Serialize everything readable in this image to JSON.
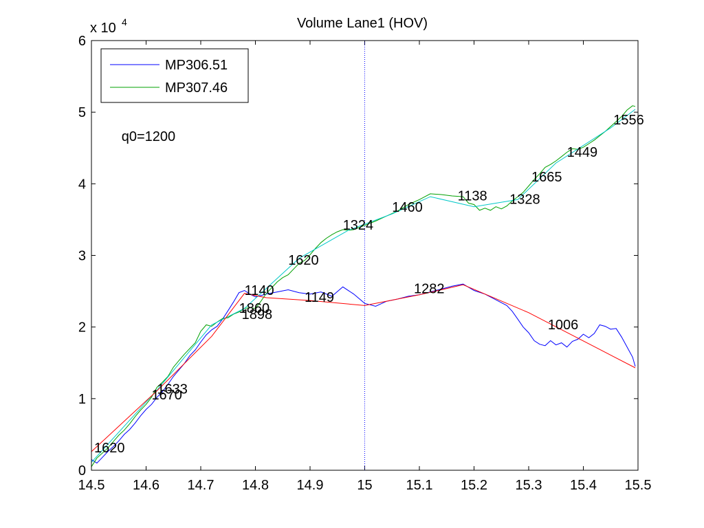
{
  "chart_data": {
    "type": "line",
    "title": "Volume Lane1 (HOV)",
    "xlabel": "",
    "ylabel": "",
    "y_multiplier_label": "x 10",
    "y_multiplier_exponent": "4",
    "xlim": [
      14.5,
      15.5
    ],
    "ylim": [
      0,
      60000
    ],
    "xticks": [
      14.5,
      14.6,
      14.7,
      14.8,
      14.9,
      15,
      15.1,
      15.2,
      15.3,
      15.4,
      15.5
    ],
    "xtick_labels": [
      "14.5",
      "14.6",
      "14.7",
      "14.8",
      "14.9",
      "15",
      "15.1",
      "15.2",
      "15.3",
      "15.4",
      "15.5"
    ],
    "yticks": [
      0,
      10000,
      20000,
      30000,
      40000,
      50000,
      60000
    ],
    "ytick_labels": [
      "0",
      "1",
      "2",
      "3",
      "4",
      "5",
      "6"
    ],
    "grid": false,
    "legend_position": "top-left",
    "vertical_marker": {
      "x": 15,
      "color": "#0000ff"
    },
    "note": "q0=1200",
    "note_pos": [
      14.555,
      46000
    ],
    "series": [
      {
        "name": "MP306.51",
        "color": "#0000ff",
        "points": [
          [
            14.5,
            1500
          ],
          [
            14.51,
            1000
          ],
          [
            14.52,
            1800
          ],
          [
            14.53,
            2600
          ],
          [
            14.54,
            3300
          ],
          [
            14.55,
            4100
          ],
          [
            14.56,
            5000
          ],
          [
            14.57,
            5700
          ],
          [
            14.58,
            6600
          ],
          [
            14.59,
            7600
          ],
          [
            14.6,
            8500
          ],
          [
            14.61,
            9200
          ],
          [
            14.62,
            10200
          ],
          [
            14.63,
            11000
          ],
          [
            14.64,
            12000
          ],
          [
            14.65,
            13100
          ],
          [
            14.66,
            14000
          ],
          [
            14.67,
            14900
          ],
          [
            14.68,
            16000
          ],
          [
            14.69,
            16800
          ],
          [
            14.7,
            17900
          ],
          [
            14.71,
            18900
          ],
          [
            14.72,
            19600
          ],
          [
            14.73,
            20100
          ],
          [
            14.74,
            21100
          ],
          [
            14.75,
            22300
          ],
          [
            14.76,
            23500
          ],
          [
            14.77,
            24800
          ],
          [
            14.78,
            25100
          ],
          [
            14.79,
            24600
          ],
          [
            14.8,
            24200
          ],
          [
            14.82,
            24600
          ],
          [
            14.84,
            24900
          ],
          [
            14.86,
            25200
          ],
          [
            14.88,
            24800
          ],
          [
            14.9,
            24600
          ],
          [
            14.92,
            24900
          ],
          [
            14.94,
            24300
          ],
          [
            14.96,
            25600
          ],
          [
            14.98,
            24600
          ],
          [
            15.0,
            23300
          ],
          [
            15.02,
            22900
          ],
          [
            15.04,
            23600
          ],
          [
            15.06,
            23900
          ],
          [
            15.08,
            24300
          ],
          [
            15.1,
            24500
          ],
          [
            15.12,
            24900
          ],
          [
            15.14,
            25300
          ],
          [
            15.16,
            25700
          ],
          [
            15.18,
            26000
          ],
          [
            15.2,
            25100
          ],
          [
            15.22,
            24600
          ],
          [
            15.24,
            23800
          ],
          [
            15.26,
            23000
          ],
          [
            15.27,
            22200
          ],
          [
            15.28,
            21100
          ],
          [
            15.29,
            20000
          ],
          [
            15.3,
            19200
          ],
          [
            15.31,
            18100
          ],
          [
            15.32,
            17600
          ],
          [
            15.33,
            17400
          ],
          [
            15.34,
            18100
          ],
          [
            15.35,
            17500
          ],
          [
            15.36,
            17800
          ],
          [
            15.37,
            17200
          ],
          [
            15.38,
            18000
          ],
          [
            15.39,
            18300
          ],
          [
            15.4,
            19000
          ],
          [
            15.41,
            18500
          ],
          [
            15.42,
            19100
          ],
          [
            15.43,
            20300
          ],
          [
            15.44,
            20100
          ],
          [
            15.45,
            19700
          ],
          [
            15.46,
            19800
          ],
          [
            15.47,
            18600
          ],
          [
            15.48,
            17200
          ],
          [
            15.49,
            15800
          ],
          [
            15.495,
            14500
          ]
        ]
      },
      {
        "name": "MP307.46",
        "color": "#00a000",
        "points": [
          [
            14.5,
            500
          ],
          [
            14.51,
            1700
          ],
          [
            14.52,
            2400
          ],
          [
            14.53,
            3100
          ],
          [
            14.54,
            4000
          ],
          [
            14.55,
            4900
          ],
          [
            14.56,
            5600
          ],
          [
            14.57,
            6500
          ],
          [
            14.58,
            7500
          ],
          [
            14.59,
            8400
          ],
          [
            14.6,
            9200
          ],
          [
            14.61,
            10200
          ],
          [
            14.62,
            11600
          ],
          [
            14.63,
            12300
          ],
          [
            14.64,
            13100
          ],
          [
            14.65,
            14400
          ],
          [
            14.66,
            15300
          ],
          [
            14.67,
            16200
          ],
          [
            14.68,
            17000
          ],
          [
            14.69,
            17800
          ],
          [
            14.7,
            19400
          ],
          [
            14.71,
            20300
          ],
          [
            14.72,
            20100
          ],
          [
            14.73,
            20700
          ],
          [
            14.74,
            21200
          ],
          [
            14.75,
            21300
          ],
          [
            14.76,
            21800
          ],
          [
            14.77,
            22100
          ],
          [
            14.78,
            22600
          ],
          [
            14.79,
            22700
          ],
          [
            14.8,
            22600
          ],
          [
            14.81,
            23600
          ],
          [
            14.82,
            24700
          ],
          [
            14.83,
            25500
          ],
          [
            14.84,
            26300
          ],
          [
            14.85,
            26900
          ],
          [
            14.86,
            27300
          ],
          [
            14.87,
            28100
          ],
          [
            14.88,
            28900
          ],
          [
            14.89,
            29300
          ],
          [
            14.9,
            30100
          ],
          [
            14.91,
            31000
          ],
          [
            14.92,
            31800
          ],
          [
            14.93,
            32400
          ],
          [
            14.94,
            32900
          ],
          [
            14.95,
            33300
          ],
          [
            14.96,
            33600
          ],
          [
            14.97,
            33500
          ],
          [
            14.98,
            33600
          ],
          [
            14.99,
            33900
          ],
          [
            15.0,
            34200
          ],
          [
            15.02,
            34800
          ],
          [
            15.04,
            35500
          ],
          [
            15.06,
            36200
          ],
          [
            15.08,
            37100
          ],
          [
            15.1,
            37800
          ],
          [
            15.12,
            38600
          ],
          [
            15.14,
            38500
          ],
          [
            15.16,
            38300
          ],
          [
            15.18,
            38200
          ],
          [
            15.19,
            37300
          ],
          [
            15.2,
            37100
          ],
          [
            15.21,
            36300
          ],
          [
            15.22,
            36600
          ],
          [
            15.23,
            36300
          ],
          [
            15.24,
            36800
          ],
          [
            15.25,
            36500
          ],
          [
            15.26,
            36900
          ],
          [
            15.27,
            37600
          ],
          [
            15.28,
            38200
          ],
          [
            15.29,
            38800
          ],
          [
            15.3,
            39700
          ],
          [
            15.31,
            40600
          ],
          [
            15.32,
            41400
          ],
          [
            15.33,
            42300
          ],
          [
            15.34,
            42700
          ],
          [
            15.35,
            43200
          ],
          [
            15.36,
            43800
          ],
          [
            15.37,
            44400
          ],
          [
            15.38,
            44900
          ],
          [
            15.39,
            44800
          ],
          [
            15.4,
            45100
          ],
          [
            15.41,
            45600
          ],
          [
            15.42,
            46100
          ],
          [
            15.43,
            46700
          ],
          [
            15.44,
            47300
          ],
          [
            15.45,
            48000
          ],
          [
            15.46,
            48700
          ],
          [
            15.47,
            49400
          ],
          [
            15.48,
            50300
          ],
          [
            15.49,
            50900
          ],
          [
            15.495,
            50800
          ]
        ]
      }
    ],
    "fit_lines": [
      {
        "color": "#00c8c8",
        "points": [
          [
            14.5,
            1100
          ],
          [
            14.62,
            11200
          ],
          [
            14.72,
            20300
          ],
          [
            14.78,
            22600
          ],
          [
            14.88,
            29600
          ],
          [
            14.97,
            33500
          ],
          [
            15.05,
            35800
          ],
          [
            15.12,
            38200
          ],
          [
            15.2,
            36800
          ],
          [
            15.28,
            37800
          ],
          [
            15.35,
            42900
          ],
          [
            15.45,
            47800
          ],
          [
            15.495,
            50400
          ]
        ]
      },
      {
        "color": "#ff0000",
        "points": [
          [
            14.5,
            2600
          ],
          [
            14.62,
            11100
          ],
          [
            14.72,
            18700
          ],
          [
            14.78,
            24700
          ],
          [
            14.82,
            24100
          ],
          [
            14.9,
            23700
          ],
          [
            15.0,
            23000
          ],
          [
            15.1,
            24500
          ],
          [
            15.18,
            25900
          ],
          [
            15.3,
            22000
          ],
          [
            15.495,
            14300
          ]
        ]
      }
    ],
    "annotations": [
      {
        "text": "1620",
        "x": 14.505,
        "y": 2500
      },
      {
        "text": "1633",
        "x": 14.62,
        "y": 10700
      },
      {
        "text": "1670",
        "x": 14.61,
        "y": 9900
      },
      {
        "text": "1860",
        "x": 14.77,
        "y": 22000
      },
      {
        "text": "1898",
        "x": 14.775,
        "y": 21100
      },
      {
        "text": "1140",
        "x": 14.78,
        "y": 24500
      },
      {
        "text": "1149",
        "x": 14.89,
        "y": 23500
      },
      {
        "text": "1620",
        "x": 14.86,
        "y": 28700
      },
      {
        "text": "1324",
        "x": 14.96,
        "y": 33600
      },
      {
        "text": "1460",
        "x": 15.05,
        "y": 36100
      },
      {
        "text": "1282",
        "x": 15.09,
        "y": 24700
      },
      {
        "text": "1138",
        "x": 15.17,
        "y": 37700
      },
      {
        "text": "1328",
        "x": 15.265,
        "y": 37200
      },
      {
        "text": "1665",
        "x": 15.305,
        "y": 40300
      },
      {
        "text": "1006",
        "x": 15.335,
        "y": 19700
      },
      {
        "text": "1449",
        "x": 15.37,
        "y": 43800
      },
      {
        "text": "1556",
        "x": 15.455,
        "y": 48300
      }
    ]
  }
}
